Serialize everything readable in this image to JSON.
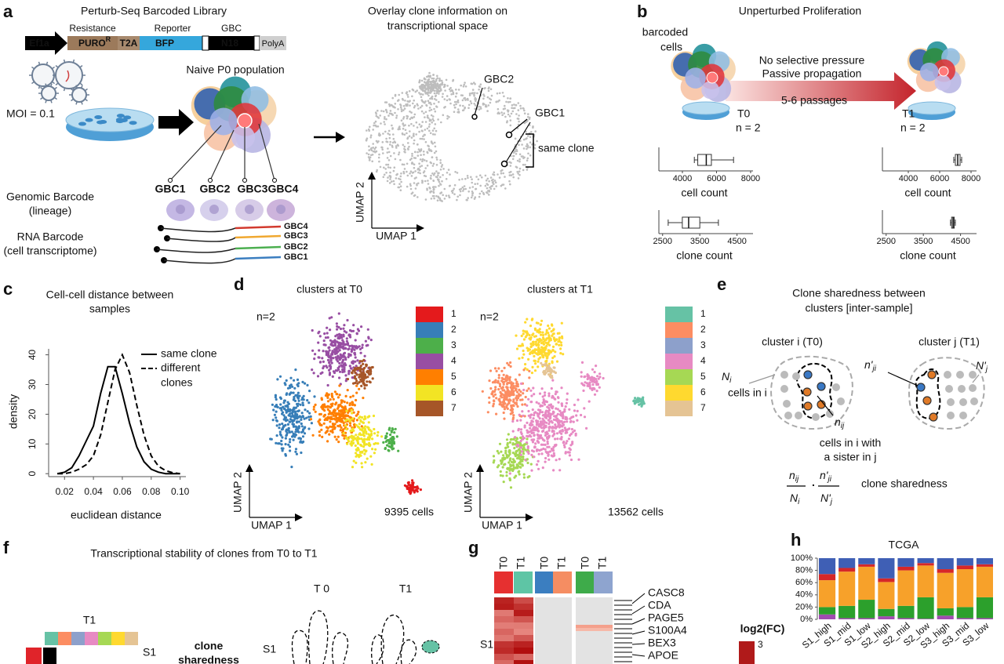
{
  "panel_a": {
    "letter": "a",
    "library_title": "Perturb-Seq Barcoded Library",
    "construct_headers": [
      "Resistance",
      "Reporter",
      "GBC"
    ],
    "construct": {
      "promoter": "Ef1a",
      "resistance": "PURO",
      "resistance_sup": "R",
      "linker": "T2A",
      "reporter": "BFP",
      "barcode": "N18",
      "polya": "PolyA"
    },
    "moi": "MOI = 0.1",
    "population": "Naive P0 population",
    "gbc_labels": [
      "GBC1",
      "GBC2",
      "GBC3",
      "GBC4"
    ],
    "genomic_barcode": [
      "Genomic Barcode",
      "(lineage)"
    ],
    "rna_barcode": [
      "RNA Barcode",
      "(cell transcriptome)"
    ],
    "rna_labels": [
      "GBC4",
      "GBC3",
      "GBC2",
      "GBC1"
    ],
    "overlay_title": [
      "Overlay clone information on",
      "transcriptional space"
    ],
    "overlay_labels": [
      "GBC2",
      "GBC1",
      "same clone"
    ],
    "umap_axes": [
      "UMAP 2",
      "UMAP 1"
    ]
  },
  "panel_b": {
    "letter": "b",
    "title": "Unperturbed Proliferation",
    "cells_label": [
      "barcoded",
      "cells"
    ],
    "arrow_text": [
      "No selective pressure",
      "Passive propagation"
    ],
    "passages": "5-6 passages",
    "timepoints": [
      {
        "name": "T0",
        "n": "n = 2",
        "plots": [
          {
            "type": "box",
            "label": "cell count",
            "xlim": [
              2620,
              8140
            ],
            "xticks": [
              4000,
              6000,
              8000
            ],
            "box": {
              "min": 4700,
              "q1": 4900,
              "median": 5400,
              "q3": 5700,
              "max": 7000
            }
          },
          {
            "type": "box",
            "label": "clone count",
            "xlim": [
              2400,
              4930
            ],
            "xticks": [
              2500,
              3500,
              4500
            ],
            "box": {
              "min": 2650,
              "q1": 3030,
              "median": 3200,
              "q3": 3500,
              "max": 4000
            }
          }
        ]
      },
      {
        "name": "T1",
        "n": "n = 2",
        "plots": [
          {
            "type": "box",
            "label": "cell count",
            "xlim": [
              2350,
              8350
            ],
            "xticks": [
              4000,
              6000,
              8000
            ],
            "box": {
              "min": 6900,
              "q1": 7000,
              "median": 7150,
              "q3": 7300,
              "max": 7400
            }
          },
          {
            "type": "box",
            "label": "clone count",
            "xlim": [
              2400,
              4930
            ],
            "xticks": [
              2500,
              3500,
              4500
            ],
            "box": {
              "min": 4230,
              "q1": 4260,
              "median": 4300,
              "q3": 4330,
              "max": 4360
            }
          }
        ]
      }
    ]
  },
  "panel_c": {
    "letter": "c",
    "title": [
      "Cell-cell distance between",
      "samples"
    ],
    "chart": {
      "type": "line",
      "x": [
        0.015,
        0.02,
        0.025,
        0.03,
        0.035,
        0.04,
        0.045,
        0.05,
        0.055,
        0.06,
        0.065,
        0.07,
        0.075,
        0.08,
        0.085,
        0.09,
        0.095,
        0.1
      ],
      "series": [
        {
          "style": "solid",
          "color": "#000000",
          "values": [
            0,
            0.5,
            2,
            6,
            11,
            16,
            27,
            36,
            36,
            27,
            17,
            9,
            4,
            1.5,
            0.5,
            0,
            0,
            0
          ]
        },
        {
          "style": "dashed",
          "color": "#000000",
          "values": [
            0,
            0,
            0.5,
            1.5,
            3,
            6,
            13,
            24,
            35,
            40,
            34,
            23,
            13,
            6,
            2.5,
            1,
            0.3,
            0
          ]
        }
      ],
      "xlim": [
        0.009,
        0.104
      ],
      "ylim": [
        -1,
        42
      ],
      "xticks": [
        0.02,
        0.04,
        0.06,
        0.08,
        {
          "value": 0.1,
          "label": "0.10"
        }
      ],
      "yticks": [
        0,
        10,
        20,
        30,
        40
      ],
      "xlabel": "euclidean distance",
      "ylabel": "density",
      "legend": {
        "same": "same clone",
        "different": [
          "different",
          "clones"
        ]
      }
    }
  },
  "panel_d": {
    "letter": "d",
    "plots": [
      {
        "title": "clusters at T0",
        "n": "n=2",
        "cells": "9395 cells",
        "axes": [
          "UMAP 2",
          "UMAP 1"
        ],
        "clusters": [
          {
            "label": "1",
            "color": "#e41a1c"
          },
          {
            "label": "2",
            "color": "#377eb8"
          },
          {
            "label": "3",
            "color": "#4daf4a"
          },
          {
            "label": "4",
            "color": "#984ea3"
          },
          {
            "label": "5",
            "color": "#ff7f00"
          },
          {
            "label": "6",
            "color": "#f2e424"
          },
          {
            "label": "7",
            "color": "#a65628"
          }
        ]
      },
      {
        "title": "clusters at T1",
        "n": "n=2",
        "cells": "13562 cells",
        "axes": [
          "UMAP 2",
          "UMAP 1"
        ],
        "clusters": [
          {
            "label": "1",
            "color": "#66c2a5"
          },
          {
            "label": "2",
            "color": "#fc8d62"
          },
          {
            "label": "3",
            "color": "#8da0cb"
          },
          {
            "label": "4",
            "color": "#e78ac3"
          },
          {
            "label": "5",
            "color": "#a6d854"
          },
          {
            "label": "6",
            "color": "#ffd92f"
          },
          {
            "label": "7",
            "color": "#e5c494"
          }
        ]
      }
    ]
  },
  "panel_e": {
    "letter": "e",
    "title": [
      "Clone sharedness between",
      "clusters [inter-sample]"
    ],
    "cluster_i": "cluster i (T0)",
    "cluster_j": "cluster j (T1)",
    "N_i": {
      "base": "N",
      "sub": "i"
    },
    "cells_in_i": "cells in i",
    "n_ij": {
      "base": "n",
      "sub": "ij"
    },
    "sister": [
      "cells in i with",
      "a sister in j"
    ],
    "n_ji": {
      "base": "n'",
      "sub": "ji"
    },
    "N_j": {
      "base": "N'",
      "sub": "j"
    },
    "formula_label": "clone sharedness"
  },
  "panel_f": {
    "letter": "f",
    "title": "Transcriptional stability of clones from T0 to T1",
    "heatmap_label": "T1",
    "row_label": "S1",
    "metric": [
      "clone",
      "sharedness"
    ],
    "timepoints": [
      "T 0",
      "T1"
    ],
    "sample": "S1"
  },
  "panel_g": {
    "letter": "g",
    "columns": [
      "T0",
      "T1",
      "T0",
      "T1",
      "T0",
      "T1"
    ],
    "row_label": "S1",
    "genes": [
      "CASC8",
      "CDA",
      "PAGE5",
      "S100A4",
      "BEX3",
      "APOE"
    ],
    "scale_title": "log2(FC)",
    "scale_ticks": [
      3
    ]
  },
  "panel_h": {
    "letter": "h",
    "chart": {
      "type": "stacked_bar",
      "title": "TCGA",
      "categories": [
        "S1_high",
        "S1_mid",
        "S1_low",
        "S2_high",
        "S2_mid",
        "S2_low",
        "S3_high",
        "S3_mid",
        "S3_low"
      ],
      "series": [
        {
          "color": "#a04cb0",
          "values": [
            8,
            2,
            2,
            5,
            2,
            1,
            6,
            2,
            2
          ]
        },
        {
          "color": "#2ca02c",
          "values": [
            12,
            20,
            30,
            12,
            20,
            35,
            12,
            18,
            34
          ]
        },
        {
          "color": "#f7a12a",
          "values": [
            44,
            56,
            54,
            44,
            58,
            52,
            58,
            62,
            50
          ]
        },
        {
          "color": "#d62728",
          "values": [
            10,
            6,
            4,
            6,
            6,
            4,
            6,
            6,
            4
          ]
        },
        {
          "color": "#3f5fb5",
          "values": [
            26,
            16,
            10,
            33,
            14,
            8,
            18,
            12,
            10
          ]
        }
      ],
      "ylim": [
        0,
        100
      ],
      "yticks": [
        {
          "value": 0,
          "label": "0%"
        },
        {
          "value": 20,
          "label": "20%"
        },
        {
          "value": 40,
          "label": "40%"
        },
        {
          "value": 60,
          "label": "60%"
        },
        {
          "value": 80,
          "label": "80%"
        },
        {
          "value": 100,
          "label": "100%"
        }
      ]
    }
  }
}
